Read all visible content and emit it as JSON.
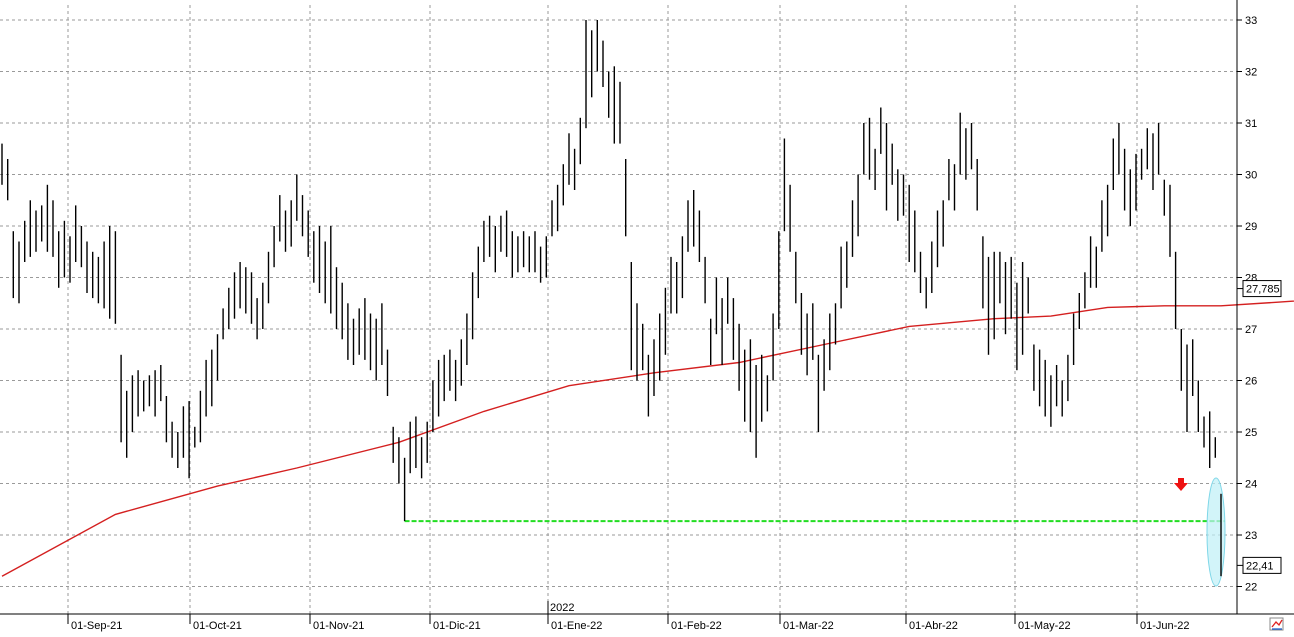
{
  "chart_data": {
    "type": "line",
    "subtype": "ohlc-bar",
    "x_tick_labels": [
      "01-Sep-21",
      "01-Oct-21",
      "01-Nov-21",
      "01-Dic-21",
      "01-Ene-22",
      "01-Feb-22",
      "01-Mar-22",
      "01-Abr-22",
      "01-May-22",
      "01-Jun-22"
    ],
    "year_marker": "2022",
    "y_tick_labels": [
      "22",
      "23",
      "24",
      "25",
      "26",
      "27",
      "28",
      "29",
      "30",
      "31",
      "32",
      "33"
    ],
    "ylim": [
      21.7,
      33.3
    ],
    "grid": "dashed",
    "price_label": "22,41",
    "ma_label": "27,785",
    "colors": {
      "bars": "#000000",
      "moving_average": "#d42020",
      "support_line": "#22dd22",
      "highlight_ellipse": "#bff0f7",
      "arrow": "#ee1111",
      "grid": "#9a9a9a"
    },
    "support_level": 23.27,
    "arrow_direction": "down",
    "bars": [
      [
        30.6,
        29.8
      ],
      [
        30.3,
        29.5
      ],
      [
        28.9,
        27.6
      ],
      [
        28.7,
        27.5
      ],
      [
        29.1,
        28.3
      ],
      [
        29.5,
        28.4
      ],
      [
        29.3,
        28.5
      ],
      [
        29.4,
        28.7
      ],
      [
        29.8,
        28.5
      ],
      [
        29.5,
        28.4
      ],
      [
        28.9,
        27.8
      ],
      [
        29.1,
        28.0
      ],
      [
        28.8,
        27.9
      ],
      [
        29.4,
        28.3
      ],
      [
        29.0,
        28.2
      ],
      [
        28.7,
        27.7
      ],
      [
        28.5,
        27.6
      ],
      [
        28.4,
        27.5
      ],
      [
        28.7,
        27.4
      ],
      [
        29.0,
        27.2
      ],
      [
        28.9,
        27.1
      ],
      [
        26.5,
        24.8
      ],
      [
        25.8,
        24.5
      ],
      [
        26.1,
        25.0
      ],
      [
        26.2,
        25.3
      ],
      [
        26.0,
        25.4
      ],
      [
        26.1,
        25.5
      ],
      [
        26.2,
        25.3
      ],
      [
        26.3,
        25.6
      ],
      [
        25.7,
        24.8
      ],
      [
        25.2,
        24.5
      ],
      [
        25.0,
        24.3
      ],
      [
        25.5,
        24.5
      ],
      [
        25.6,
        24.1
      ],
      [
        25.1,
        24.7
      ],
      [
        25.8,
        24.8
      ],
      [
        26.4,
        25.3
      ],
      [
        26.6,
        25.5
      ],
      [
        26.9,
        26.0
      ],
      [
        27.4,
        26.8
      ],
      [
        27.8,
        27.0
      ],
      [
        28.1,
        27.2
      ],
      [
        28.3,
        27.4
      ],
      [
        28.2,
        27.3
      ],
      [
        28.1,
        27.1
      ],
      [
        27.6,
        26.8
      ],
      [
        27.9,
        27.0
      ],
      [
        28.5,
        27.5
      ],
      [
        29.0,
        28.2
      ],
      [
        29.6,
        28.7
      ],
      [
        29.3,
        28.5
      ],
      [
        29.5,
        28.6
      ],
      [
        30.0,
        29.1
      ],
      [
        29.6,
        28.8
      ],
      [
        29.3,
        28.4
      ],
      [
        28.9,
        27.9
      ],
      [
        29.0,
        27.7
      ],
      [
        28.7,
        27.5
      ],
      [
        29.0,
        27.3
      ],
      [
        28.2,
        27.0
      ],
      [
        27.9,
        26.8
      ],
      [
        27.5,
        26.4
      ],
      [
        27.2,
        26.3
      ],
      [
        27.4,
        26.5
      ],
      [
        27.6,
        26.4
      ],
      [
        27.3,
        26.2
      ],
      [
        27.2,
        26.0
      ],
      [
        27.5,
        26.3
      ],
      [
        26.6,
        25.7
      ],
      [
        25.1,
        24.4
      ],
      [
        24.9,
        24.0
      ],
      [
        24.5,
        23.27
      ],
      [
        25.2,
        24.2
      ],
      [
        25.3,
        24.3
      ],
      [
        24.9,
        24.1
      ],
      [
        25.2,
        24.4
      ],
      [
        26.0,
        25.0
      ],
      [
        26.4,
        25.3
      ],
      [
        26.5,
        25.6
      ],
      [
        26.6,
        25.8
      ],
      [
        26.4,
        25.6
      ],
      [
        26.8,
        25.9
      ],
      [
        27.3,
        26.3
      ],
      [
        28.1,
        26.8
      ],
      [
        28.6,
        27.6
      ],
      [
        29.1,
        28.3
      ],
      [
        29.2,
        28.4
      ],
      [
        29.0,
        28.1
      ],
      [
        29.2,
        28.5
      ],
      [
        29.3,
        28.4
      ],
      [
        28.9,
        28.0
      ],
      [
        28.8,
        28.1
      ],
      [
        28.9,
        28.2
      ],
      [
        28.8,
        28.1
      ],
      [
        28.9,
        28.1
      ],
      [
        28.6,
        27.9
      ],
      [
        28.8,
        28.0
      ],
      [
        29.5,
        28.8
      ],
      [
        29.8,
        28.9
      ],
      [
        30.2,
        29.4
      ],
      [
        30.8,
        29.8
      ],
      [
        30.5,
        29.7
      ],
      [
        31.1,
        30.2
      ],
      [
        33.0,
        30.9
      ],
      [
        32.8,
        31.5
      ],
      [
        33.0,
        32.0
      ],
      [
        32.6,
        31.7
      ],
      [
        32.0,
        31.1
      ],
      [
        32.1,
        30.6
      ],
      [
        31.8,
        30.6
      ],
      [
        30.3,
        28.8
      ],
      [
        28.3,
        26.2
      ],
      [
        27.5,
        26.0
      ],
      [
        27.1,
        26.2
      ],
      [
        26.5,
        25.3
      ],
      [
        26.8,
        25.7
      ],
      [
        27.3,
        26.0
      ],
      [
        27.8,
        26.5
      ],
      [
        28.4,
        27.3
      ],
      [
        28.3,
        27.3
      ],
      [
        28.8,
        27.6
      ],
      [
        29.5,
        28.5
      ],
      [
        29.7,
        28.6
      ],
      [
        29.3,
        28.3
      ],
      [
        28.4,
        27.5
      ],
      [
        27.2,
        26.3
      ],
      [
        28.0,
        26.9
      ],
      [
        27.6,
        26.3
      ],
      [
        28.0,
        27.1
      ],
      [
        27.6,
        26.4
      ],
      [
        27.1,
        25.8
      ],
      [
        26.6,
        25.2
      ],
      [
        26.8,
        25.0
      ],
      [
        26.3,
        24.5
      ],
      [
        26.5,
        25.2
      ],
      [
        26.1,
        25.4
      ],
      [
        27.3,
        26.0
      ],
      [
        28.9,
        27.0
      ],
      [
        30.7,
        28.9
      ],
      [
        29.8,
        28.5
      ],
      [
        28.5,
        27.5
      ],
      [
        27.7,
        26.5
      ],
      [
        27.3,
        26.1
      ],
      [
        27.5,
        26.4
      ],
      [
        26.5,
        25.0
      ],
      [
        26.8,
        25.8
      ],
      [
        27.3,
        26.2
      ],
      [
        27.5,
        26.7
      ],
      [
        28.6,
        27.4
      ],
      [
        28.7,
        27.8
      ],
      [
        29.5,
        28.4
      ],
      [
        30.0,
        28.8
      ],
      [
        31.0,
        30.0
      ],
      [
        31.1,
        29.9
      ],
      [
        30.5,
        29.7
      ],
      [
        31.3,
        30.4
      ],
      [
        31.0,
        29.3
      ],
      [
        30.6,
        29.8
      ],
      [
        30.1,
        29.1
      ],
      [
        30.0,
        29.2
      ],
      [
        29.8,
        28.3
      ],
      [
        29.3,
        28.1
      ],
      [
        28.5,
        27.7
      ],
      [
        28.0,
        27.4
      ],
      [
        28.7,
        27.7
      ],
      [
        29.3,
        28.2
      ],
      [
        29.5,
        28.6
      ],
      [
        30.3,
        29.5
      ],
      [
        30.2,
        29.3
      ],
      [
        31.2,
        30.0
      ],
      [
        30.9,
        29.9
      ],
      [
        31.0,
        30.1
      ],
      [
        30.3,
        29.3
      ],
      [
        28.8,
        27.4
      ],
      [
        28.4,
        26.5
      ],
      [
        28.5,
        26.8
      ],
      [
        28.5,
        27.5
      ],
      [
        28.3,
        26.9
      ],
      [
        28.4,
        27.2
      ],
      [
        27.9,
        26.2
      ],
      [
        28.3,
        26.5
      ],
      [
        28.0,
        27.3
      ],
      [
        26.7,
        25.8
      ],
      [
        26.6,
        25.5
      ],
      [
        26.4,
        25.3
      ],
      [
        26.1,
        25.1
      ],
      [
        26.3,
        25.5
      ],
      [
        26.0,
        25.3
      ],
      [
        26.5,
        25.6
      ],
      [
        27.3,
        26.3
      ],
      [
        27.7,
        27.0
      ],
      [
        28.1,
        27.4
      ],
      [
        28.8,
        27.8
      ],
      [
        28.6,
        27.8
      ],
      [
        29.5,
        28.5
      ],
      [
        29.8,
        28.8
      ],
      [
        30.7,
        29.7
      ],
      [
        31.0,
        30.0
      ],
      [
        30.5,
        29.3
      ],
      [
        30.1,
        29.0
      ],
      [
        30.4,
        29.3
      ],
      [
        30.5,
        29.9
      ],
      [
        30.9,
        30.1
      ],
      [
        30.8,
        29.7
      ],
      [
        31.0,
        30.0
      ],
      [
        29.9,
        29.2
      ],
      [
        29.8,
        28.4
      ],
      [
        28.5,
        27.0
      ],
      [
        27.0,
        25.8
      ],
      [
        26.7,
        25.0
      ],
      [
        26.8,
        25.7
      ],
      [
        26.0,
        25.0
      ],
      [
        25.3,
        24.7
      ],
      [
        25.4,
        24.3
      ],
      [
        24.9,
        24.5
      ],
      [
        23.8,
        22.2
      ]
    ],
    "moving_average": [
      [
        0,
        22.2
      ],
      [
        20,
        23.4
      ],
      [
        38,
        23.95
      ],
      [
        52,
        24.3
      ],
      [
        70,
        24.8
      ],
      [
        85,
        25.4
      ],
      [
        100,
        25.9
      ],
      [
        115,
        26.15
      ],
      [
        130,
        26.35
      ],
      [
        145,
        26.7
      ],
      [
        160,
        27.05
      ],
      [
        175,
        27.2
      ],
      [
        185,
        27.25
      ],
      [
        195,
        27.42
      ],
      [
        205,
        27.45
      ],
      [
        215,
        27.45
      ],
      [
        225,
        27.52
      ],
      [
        235,
        27.6
      ],
      [
        245,
        27.8
      ],
      [
        255,
        27.95
      ],
      [
        265,
        28.05
      ],
      [
        275,
        27.95
      ],
      [
        285,
        27.88
      ],
      [
        295,
        27.92
      ],
      [
        305,
        27.85
      ],
      [
        316,
        27.785
      ]
    ]
  }
}
